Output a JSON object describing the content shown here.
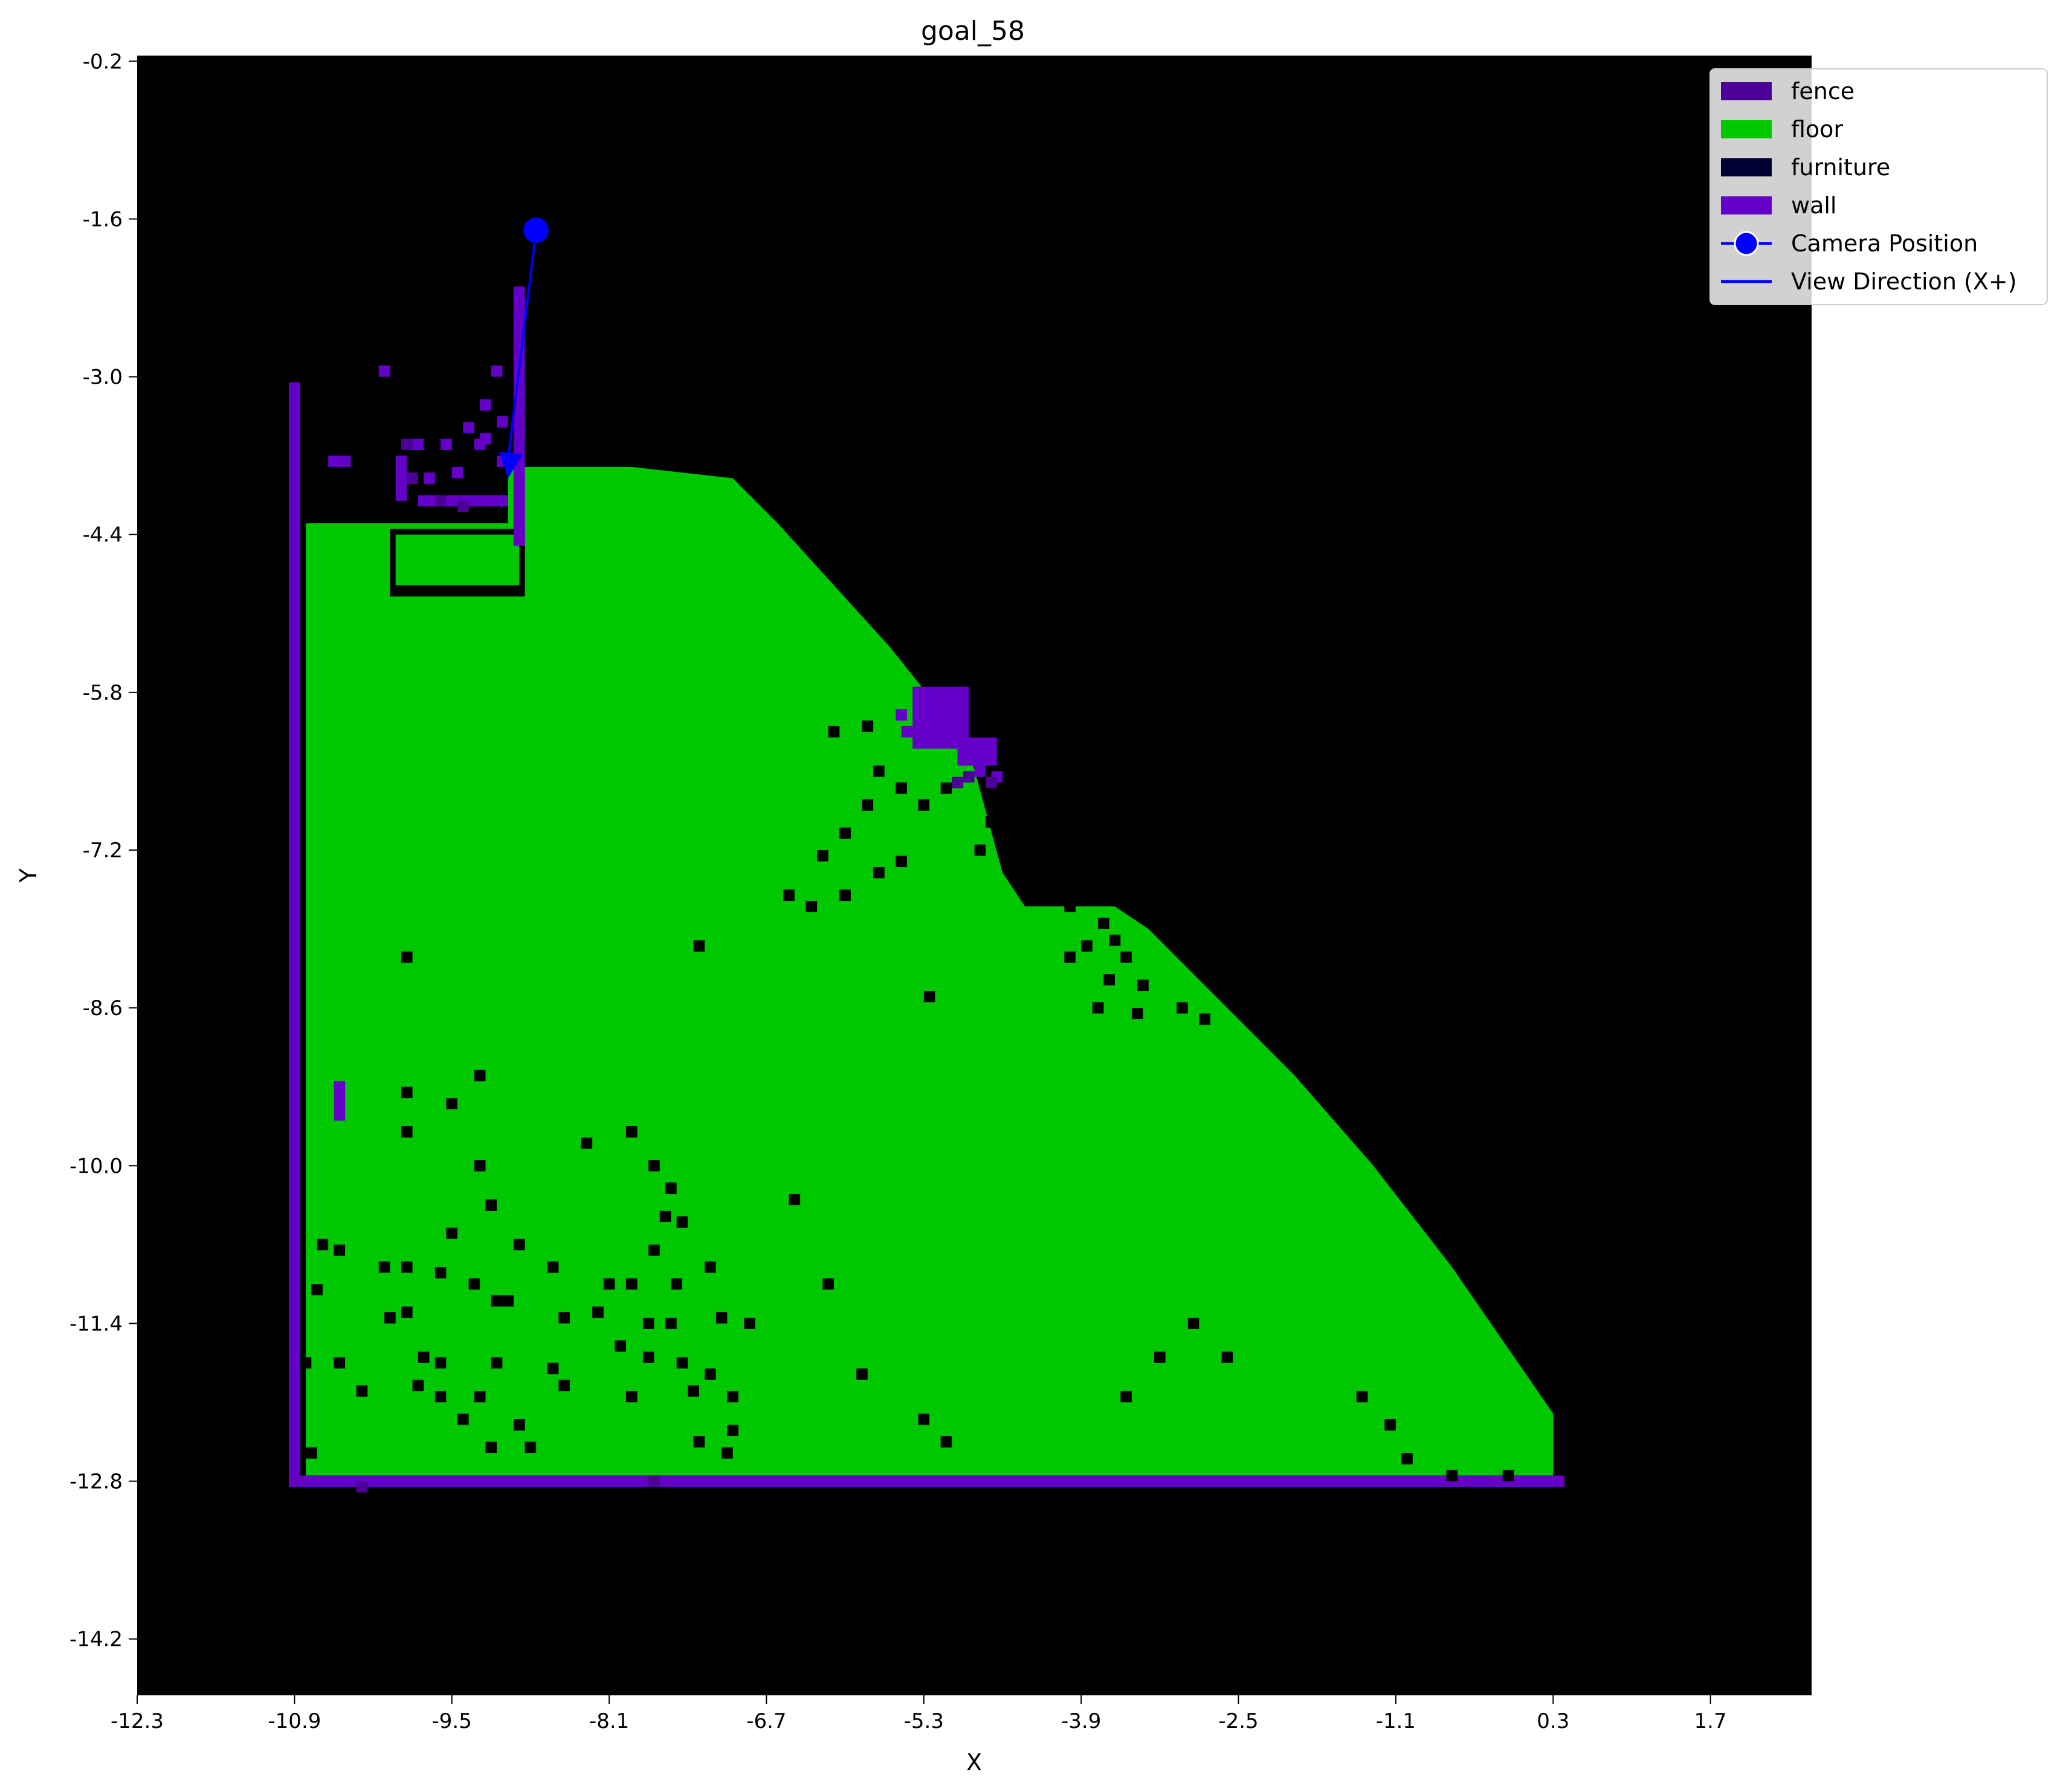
{
  "map": {
    "title": "goal_58",
    "xlabel": "X",
    "ylabel": "Y",
    "x_ticks": [
      "-12.3",
      "-10.9",
      "-9.5",
      "-8.1",
      "-6.7",
      "-5.3",
      "-3.9",
      "-2.5",
      "-1.1",
      "0.3",
      "1.7"
    ],
    "y_ticks": [
      "-0.2",
      "-1.6",
      "-3.0",
      "-4.4",
      "-5.8",
      "-7.2",
      "-8.6",
      "-10.0",
      "-11.4",
      "-12.8",
      "-14.2"
    ],
    "x_range": [
      -12.3,
      2.6
    ],
    "y_range": [
      -14.7,
      -0.15
    ],
    "background_color": "#000000",
    "classes": {
      "fence": "#4B0096",
      "floor": "#00C800",
      "furniture": "#000032",
      "wall": "#6400C8"
    },
    "floor_polygon": [
      [
        -10.3,
        -4.3
      ],
      [
        -9.0,
        -4.3
      ],
      [
        -9.0,
        -3.8
      ],
      [
        -7.9,
        -3.8
      ],
      [
        -7.0,
        -3.9
      ],
      [
        -6.6,
        -4.3
      ],
      [
        -5.6,
        -5.4
      ],
      [
        -5.2,
        -5.9
      ],
      [
        -4.9,
        -6.3
      ],
      [
        -4.6,
        -7.4
      ],
      [
        -4.4,
        -7.7
      ],
      [
        -3.6,
        -7.7
      ],
      [
        -3.3,
        -7.9
      ],
      [
        -2.7,
        -8.5
      ],
      [
        -2.0,
        -9.2
      ],
      [
        -1.3,
        -10.0
      ],
      [
        -0.6,
        -10.9
      ],
      [
        0.3,
        -12.2
      ],
      [
        0.3,
        -12.75
      ],
      [
        -10.8,
        -12.75
      ],
      [
        -10.8,
        -4.3
      ]
    ],
    "inner_floor_rect": {
      "x": [
        -10.0,
        -8.9
      ],
      "y": [
        -4.4,
        -4.85
      ]
    },
    "walls": [
      {
        "x": [
          -10.95,
          -10.85
        ],
        "y": [
          -3.05,
          -12.85
        ]
      },
      {
        "x": [
          -10.95,
          0.4
        ],
        "y": [
          -12.75,
          -12.85
        ]
      },
      {
        "x": [
          -10.55,
          -10.45
        ],
        "y": [
          -9.25,
          -9.6
        ]
      },
      {
        "x": [
          -8.95,
          -8.85
        ],
        "y": [
          -2.2,
          -4.5
        ]
      },
      {
        "x": [
          -5.4,
          -4.9
        ],
        "y": [
          -5.75,
          -6.3
        ]
      },
      {
        "x": [
          -5.0,
          -4.65
        ],
        "y": [
          -6.2,
          -6.45
        ]
      },
      {
        "x": [
          -10.0,
          -9.9
        ],
        "y": [
          -3.7,
          -4.1
        ]
      },
      {
        "x": [
          -9.8,
          -9.0
        ],
        "y": [
          -4.05,
          -4.15
        ]
      },
      {
        "x": [
          -10.6,
          -10.4
        ],
        "y": [
          -3.7,
          -3.8
        ]
      }
    ],
    "wall_specks": [
      [
        -10.1,
        -2.95
      ],
      [
        -9.35,
        -3.45
      ],
      [
        -9.2,
        -3.25
      ],
      [
        -9.05,
        -3.4
      ],
      [
        -9.55,
        -3.6
      ],
      [
        -9.2,
        -3.55
      ],
      [
        -9.05,
        -3.75
      ],
      [
        -9.7,
        -3.9
      ],
      [
        -9.45,
        -3.85
      ],
      [
        -9.1,
        -2.95
      ],
      [
        -9.25,
        -3.6
      ],
      [
        -9.8,
        -3.6
      ],
      [
        -5.5,
        -6.0
      ],
      [
        -5.45,
        -6.15
      ],
      [
        -4.8,
        -6.5
      ],
      [
        -4.65,
        -6.55
      ]
    ],
    "fence_specks": [
      [
        -9.9,
        -3.6
      ],
      [
        -9.85,
        -3.9
      ],
      [
        -9.6,
        -4.1
      ],
      [
        -9.4,
        -4.15
      ],
      [
        -4.7,
        -6.6
      ],
      [
        -4.9,
        -6.55
      ],
      [
        -5.0,
        -6.6
      ],
      [
        -10.3,
        -12.85
      ],
      [
        -7.7,
        -12.8
      ]
    ],
    "obstacle_cells": [
      [
        -6.1,
        -6.15
      ],
      [
        -5.8,
        -6.1
      ],
      [
        -5.7,
        -6.5
      ],
      [
        -5.5,
        -6.65
      ],
      [
        -5.8,
        -6.8
      ],
      [
        -6.0,
        -7.05
      ],
      [
        -6.2,
        -7.25
      ],
      [
        -5.5,
        -7.3
      ],
      [
        -5.7,
        -7.4
      ],
      [
        -6.5,
        -7.6
      ],
      [
        -6.3,
        -7.7
      ],
      [
        -6.0,
        -7.6
      ],
      [
        -4.7,
        -6.95
      ],
      [
        -4.8,
        -7.2
      ],
      [
        -5.3,
        -6.8
      ],
      [
        -5.1,
        -6.65
      ],
      [
        -7.3,
        -8.05
      ],
      [
        -9.9,
        -8.15
      ],
      [
        -4.0,
        -7.7
      ],
      [
        -3.7,
        -7.85
      ],
      [
        -3.85,
        -8.05
      ],
      [
        -3.6,
        -8.0
      ],
      [
        -3.5,
        -8.15
      ],
      [
        -4.0,
        -8.15
      ],
      [
        -3.65,
        -8.35
      ],
      [
        -3.35,
        -8.4
      ],
      [
        -3.75,
        -8.6
      ],
      [
        -3.4,
        -8.65
      ],
      [
        -3.0,
        -8.6
      ],
      [
        -2.8,
        -8.7
      ],
      [
        -5.25,
        -8.5
      ],
      [
        -9.25,
        -9.2
      ],
      [
        -9.9,
        -9.35
      ],
      [
        -9.9,
        -9.7
      ],
      [
        -9.5,
        -9.45
      ],
      [
        -7.9,
        -9.7
      ],
      [
        -8.3,
        -9.8
      ],
      [
        -9.25,
        -10.0
      ],
      [
        -7.7,
        -10.0
      ],
      [
        -9.15,
        -10.35
      ],
      [
        -6.45,
        -10.3
      ],
      [
        -7.55,
        -10.2
      ],
      [
        -7.6,
        -10.45
      ],
      [
        -7.45,
        -10.5
      ],
      [
        -9.5,
        -10.6
      ],
      [
        -8.9,
        -10.7
      ],
      [
        -10.65,
        -10.7
      ],
      [
        -10.5,
        -10.75
      ],
      [
        -10.1,
        -10.9
      ],
      [
        -9.9,
        -10.9
      ],
      [
        -9.6,
        -10.95
      ],
      [
        -8.6,
        -10.9
      ],
      [
        -7.2,
        -10.9
      ],
      [
        -7.7,
        -10.75
      ],
      [
        -9.3,
        -11.05
      ],
      [
        -8.1,
        -11.05
      ],
      [
        -7.9,
        -11.05
      ],
      [
        -7.5,
        -11.05
      ],
      [
        -6.15,
        -11.05
      ],
      [
        -10.7,
        -11.1
      ],
      [
        -10.05,
        -11.35
      ],
      [
        -9.9,
        -11.3
      ],
      [
        -9.1,
        -11.2
      ],
      [
        -9.0,
        -11.2
      ],
      [
        -8.2,
        -11.3
      ],
      [
        -8.5,
        -11.35
      ],
      [
        -7.75,
        -11.4
      ],
      [
        -7.55,
        -11.4
      ],
      [
        -7.1,
        -11.35
      ],
      [
        -6.85,
        -11.4
      ],
      [
        -3.2,
        -11.7
      ],
      [
        -2.9,
        -11.4
      ],
      [
        -2.6,
        -11.7
      ],
      [
        -10.8,
        -11.75
      ],
      [
        -10.5,
        -11.75
      ],
      [
        -9.75,
        -11.7
      ],
      [
        -9.6,
        -11.75
      ],
      [
        -9.1,
        -11.75
      ],
      [
        -8.6,
        -11.8
      ],
      [
        -8.0,
        -11.6
      ],
      [
        -7.75,
        -11.7
      ],
      [
        -7.45,
        -11.75
      ],
      [
        -7.2,
        -11.85
      ],
      [
        -5.85,
        -11.85
      ],
      [
        -10.3,
        -12.0
      ],
      [
        -9.8,
        -11.95
      ],
      [
        -9.6,
        -12.05
      ],
      [
        -9.25,
        -12.05
      ],
      [
        -8.5,
        -11.95
      ],
      [
        -7.9,
        -12.05
      ],
      [
        -7.35,
        -12.0
      ],
      [
        -7.0,
        -12.05
      ],
      [
        -3.5,
        -12.05
      ],
      [
        -1.4,
        -12.05
      ],
      [
        -9.4,
        -12.25
      ],
      [
        -8.9,
        -12.3
      ],
      [
        -7.3,
        -12.45
      ],
      [
        -7.0,
        -12.35
      ],
      [
        -5.3,
        -12.25
      ],
      [
        -5.1,
        -12.45
      ],
      [
        -8.8,
        -12.5
      ],
      [
        -10.75,
        -12.55
      ],
      [
        -9.15,
        -12.5
      ],
      [
        -7.05,
        -12.55
      ],
      [
        -1.15,
        -12.3
      ],
      [
        -1.0,
        -12.6
      ],
      [
        -0.6,
        -12.75
      ],
      [
        -0.1,
        -12.75
      ]
    ],
    "camera": {
      "position": [
        -8.75,
        -1.7
      ],
      "marker_color": "#0000FF",
      "view_end": [
        -9.0,
        -3.9
      ]
    },
    "legend": {
      "placement": "top-right",
      "items": [
        {
          "label": "fence",
          "kind": "patch",
          "color": "#4B0096"
        },
        {
          "label": "floor",
          "kind": "patch",
          "color": "#00C800"
        },
        {
          "label": "furniture",
          "kind": "patch",
          "color": "#000032"
        },
        {
          "label": "wall",
          "kind": "patch",
          "color": "#6400C8"
        },
        {
          "label": "Camera Position",
          "kind": "marker",
          "color": "#0000FF"
        },
        {
          "label": "View Direction (X+)",
          "kind": "line",
          "color": "#0000FF"
        }
      ]
    }
  }
}
